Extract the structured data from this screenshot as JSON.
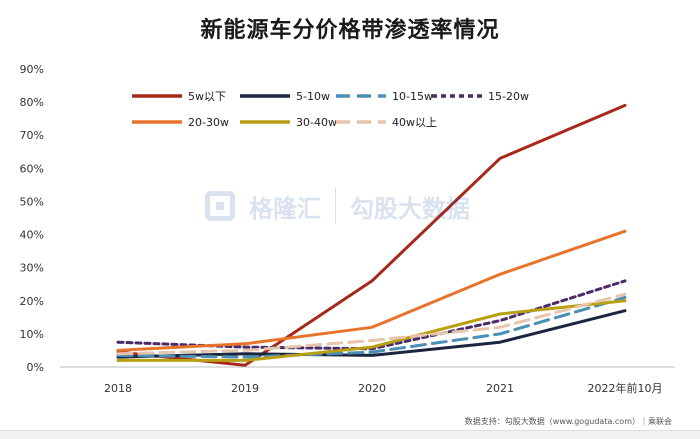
{
  "chart_data": {
    "type": "line",
    "title": "新能源车分价格带渗透率情况",
    "x": [
      "2018",
      "2019",
      "2020",
      "2021",
      "2022年前10月"
    ],
    "y_ticks": [
      "0%",
      "10%",
      "20%",
      "30%",
      "40%",
      "50%",
      "60%",
      "70%",
      "80%",
      "90%"
    ],
    "ylim": [
      0,
      90
    ],
    "grid": false,
    "legend_position": "top",
    "series": [
      {
        "name": "5w以下",
        "color": "#a8281c",
        "dash": "solid",
        "values": [
          4.5,
          0.5,
          26,
          63,
          79
        ]
      },
      {
        "name": "5-10w",
        "color": "#1c2540",
        "dash": "solid",
        "values": [
          3,
          4,
          3.5,
          7.5,
          17
        ]
      },
      {
        "name": "10-15w",
        "color": "#4a8fb5",
        "dash": "long",
        "values": [
          3.5,
          3,
          4.5,
          10,
          21
        ]
      },
      {
        "name": "15-20w",
        "color": "#4b2c68",
        "dash": "dot",
        "values": [
          7.5,
          6,
          5.5,
          14,
          26
        ]
      },
      {
        "name": "20-30w",
        "color": "#e8732a",
        "dash": "solid",
        "values": [
          5,
          7,
          12,
          28,
          41
        ]
      },
      {
        "name": "30-40w",
        "color": "#b8a012",
        "dash": "solid",
        "values": [
          2,
          2,
          6,
          16,
          20
        ]
      },
      {
        "name": "40w以上",
        "color": "#e6c5ac",
        "dash": "long",
        "values": [
          4,
          5,
          8,
          12,
          22
        ]
      }
    ]
  },
  "watermark": {
    "brand": "格隆汇",
    "brand2": "勾股大数据"
  },
  "source": "数据支持：勾股大数据（www.gogudata.com）｜乘联会"
}
